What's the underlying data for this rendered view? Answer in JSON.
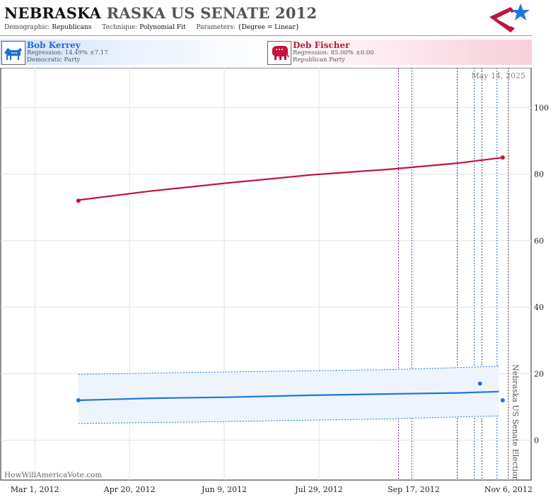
{
  "header": {
    "title_state": "NEBRASKA",
    "title_rest": "RASKA US SENATE 2012",
    "demographic_label": "Demographic:",
    "demographic_value": "Republicans",
    "technique_label": "Technique:",
    "technique_value": "Polynomial Fit",
    "parameters_label": "Parameters:",
    "parameters_value": "{Degree = Linear}"
  },
  "candidates": {
    "dem": {
      "name": "Bob Kerrey",
      "regression": "Regression: 14.49% ±7.17",
      "party": "Democratic Party"
    },
    "rep": {
      "name": "Deb Fischer",
      "regression": "Regression: 85.00% ±0.00",
      "party": "Republican Party"
    }
  },
  "colors": {
    "dem": "#1f78d8",
    "rep": "#c0143c",
    "band": "#eef4fc"
  },
  "chart_data": {
    "type": "line",
    "date_label": "May 14, 2025",
    "watermark": "HowWillAmericaVote.com",
    "event_label": "Nebraska US Senate Election",
    "xlim": [
      "2012-02-12",
      "2012-11-18"
    ],
    "ylim": [
      -12,
      112
    ],
    "yticks": [
      0,
      20,
      40,
      60,
      80,
      100
    ],
    "xticks": [
      {
        "label": "Mar 1, 2012",
        "date": "2012-03-01"
      },
      {
        "label": "Apr 20, 2012",
        "date": "2012-04-20"
      },
      {
        "label": "Jun 9, 2012",
        "date": "2012-06-09"
      },
      {
        "label": "Jul 29, 2012",
        "date": "2012-07-29"
      },
      {
        "label": "Sep 17, 2012",
        "date": "2012-09-17"
      },
      {
        "label": "Nov 6, 2012",
        "date": "2012-11-06"
      }
    ],
    "series": [
      {
        "name": "Deb Fischer",
        "color": "#c0143c",
        "fit": [
          {
            "x": "2012-03-24",
            "y": 72.2
          },
          {
            "x": "2012-05-01",
            "y": 74.9
          },
          {
            "x": "2012-06-10",
            "y": 77.3
          },
          {
            "x": "2012-07-25",
            "y": 79.8
          },
          {
            "x": "2012-09-05",
            "y": 81.5
          },
          {
            "x": "2012-10-10",
            "y": 83.3
          },
          {
            "x": "2012-11-03",
            "y": 85.0
          }
        ],
        "points": [
          {
            "x": "2012-03-24",
            "y": 72.0
          },
          {
            "x": "2012-11-03",
            "y": 85.0
          }
        ]
      },
      {
        "name": "Bob Kerrey",
        "color": "#1f78d8",
        "fit": [
          {
            "x": "2012-03-24",
            "y": 12.0
          },
          {
            "x": "2012-05-01",
            "y": 12.6
          },
          {
            "x": "2012-06-10",
            "y": 12.9
          },
          {
            "x": "2012-07-25",
            "y": 13.5
          },
          {
            "x": "2012-09-05",
            "y": 13.9
          },
          {
            "x": "2012-10-10",
            "y": 14.2
          },
          {
            "x": "2012-11-01",
            "y": 14.6
          }
        ],
        "upper": [
          {
            "x": "2012-03-24",
            "y": 19.8
          },
          {
            "x": "2012-06-10",
            "y": 20.5
          },
          {
            "x": "2012-09-05",
            "y": 21.2
          },
          {
            "x": "2012-11-01",
            "y": 22.2
          }
        ],
        "lower": [
          {
            "x": "2012-03-24",
            "y": 5.0
          },
          {
            "x": "2012-06-10",
            "y": 5.6
          },
          {
            "x": "2012-09-05",
            "y": 6.4
          },
          {
            "x": "2012-11-01",
            "y": 7.3
          }
        ],
        "points": [
          {
            "x": "2012-03-24",
            "y": 12.0
          },
          {
            "x": "2012-10-22",
            "y": 17.0
          },
          {
            "x": "2012-11-03",
            "y": 12.0
          }
        ]
      }
    ],
    "vlines": [
      {
        "date": "2012-09-09",
        "color": "#8a2a8a"
      },
      {
        "date": "2012-09-16",
        "color": "#2a6ab0"
      },
      {
        "date": "2012-10-10",
        "color": "#444444"
      },
      {
        "date": "2012-10-19",
        "color": "#2a6ab0"
      },
      {
        "date": "2012-10-23",
        "color": "#444444"
      },
      {
        "date": "2012-10-31",
        "color": "#2a6ab0"
      },
      {
        "date": "2012-11-06",
        "color": "#444444"
      }
    ]
  }
}
